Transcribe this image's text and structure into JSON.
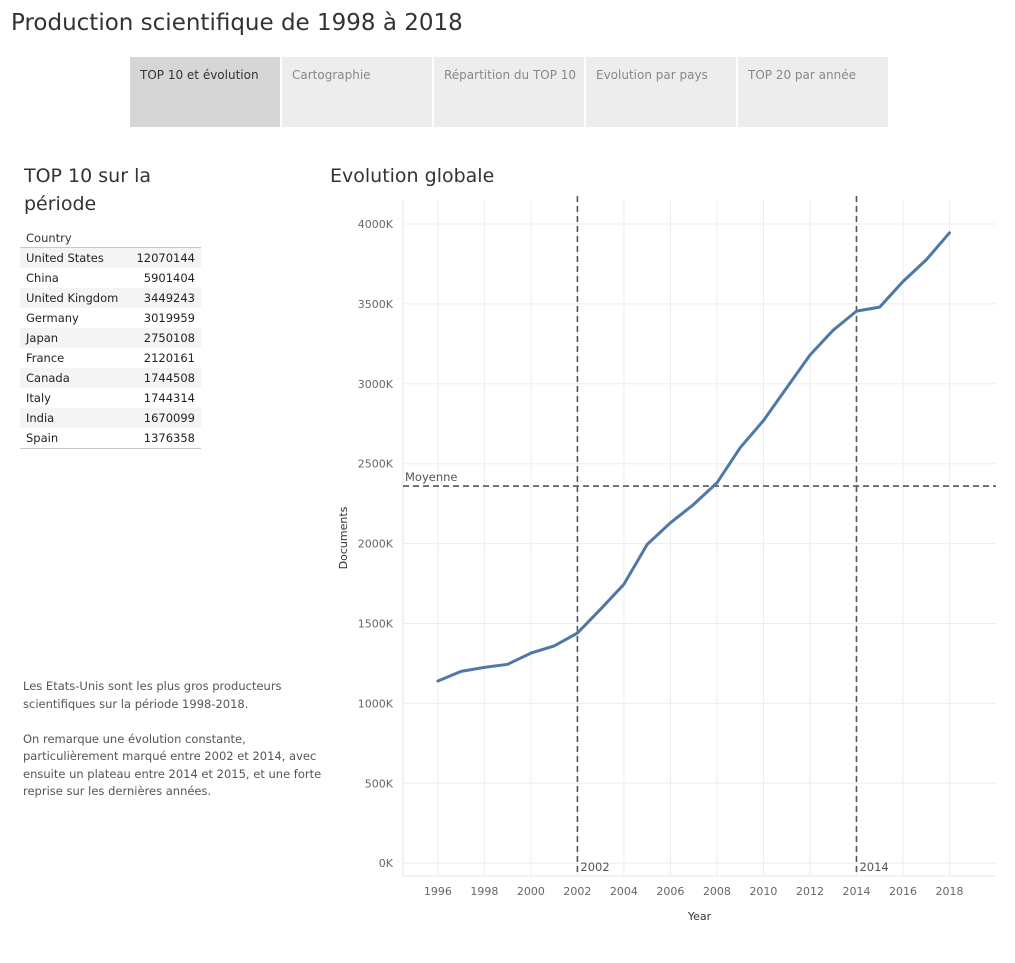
{
  "page": {
    "title": "Production scientifique de 1998 à 2018"
  },
  "tabs": [
    {
      "label": "TOP 10 et évolution",
      "active": true
    },
    {
      "label": "Cartographie",
      "active": false
    },
    {
      "label": "Répartition du TOP 10",
      "active": false
    },
    {
      "label": "Evolution par pays",
      "active": false
    },
    {
      "label": "TOP 20 par année",
      "active": false
    }
  ],
  "top10": {
    "title": "TOP 10 sur la période",
    "column_header": "Country",
    "rows": [
      {
        "country": "United States",
        "value": "12070144"
      },
      {
        "country": "China",
        "value": "5901404"
      },
      {
        "country": "United Kingdom",
        "value": "3449243"
      },
      {
        "country": "Germany",
        "value": "3019959"
      },
      {
        "country": "Japan",
        "value": "2750108"
      },
      {
        "country": "France",
        "value": "2120161"
      },
      {
        "country": "Canada",
        "value": "1744508"
      },
      {
        "country": "Italy",
        "value": "1744314"
      },
      {
        "country": "India",
        "value": "1670099"
      },
      {
        "country": "Spain",
        "value": "1376358"
      }
    ]
  },
  "description": {
    "p1": "Les Etats-Unis sont les plus gros producteurs scientifiques sur la période 1998-2018.",
    "p2": "On remarque une évolution constante, particulièrement marqué entre 2002 et 2014, avec ensuite un plateau entre 2014 et 2015, et une forte reprise sur les dernières années."
  },
  "chart_data": {
    "type": "line",
    "title": "Evolution globale",
    "xlabel": "Year",
    "ylabel": "Documents",
    "x": [
      1996,
      1997,
      1998,
      1999,
      2000,
      2001,
      2002,
      2003,
      2004,
      2005,
      2006,
      2007,
      2008,
      2009,
      2010,
      2011,
      2012,
      2013,
      2014,
      2015,
      2016,
      2017,
      2018
    ],
    "values": [
      1140000,
      1200000,
      1225000,
      1245000,
      1315000,
      1360000,
      1440000,
      1590000,
      1745000,
      1995000,
      2130000,
      2245000,
      2380000,
      2600000,
      2770000,
      2975000,
      3180000,
      3335000,
      3455000,
      3480000,
      3640000,
      3775000,
      3945000
    ],
    "xlim": [
      1994.5,
      2020
    ],
    "ylim": [
      -80000,
      4150000
    ],
    "x_ticks": [
      1996,
      1998,
      2000,
      2002,
      2004,
      2006,
      2008,
      2010,
      2012,
      2014,
      2016,
      2018
    ],
    "x_tick_labels": [
      "1996",
      "1998",
      "2000",
      "2002",
      "2004",
      "2006",
      "2008",
      "2010",
      "2012",
      "2014",
      "2016",
      "2018"
    ],
    "y_ticks": [
      0,
      500000,
      1000000,
      1500000,
      2000000,
      2500000,
      3000000,
      3500000,
      4000000
    ],
    "y_tick_labels": [
      "0K",
      "500K",
      "1000K",
      "1500K",
      "2000K",
      "2500K",
      "3000K",
      "3500K",
      "4000K"
    ],
    "reference_lines": [
      {
        "axis": "x",
        "value": 2002,
        "label": "2002"
      },
      {
        "axis": "x",
        "value": 2014,
        "label": "2014"
      },
      {
        "axis": "y",
        "value": 2360000,
        "label": "Moyenne"
      }
    ],
    "grid": true,
    "line_color": "#4e79a7",
    "ref_line_color": "#555555"
  }
}
